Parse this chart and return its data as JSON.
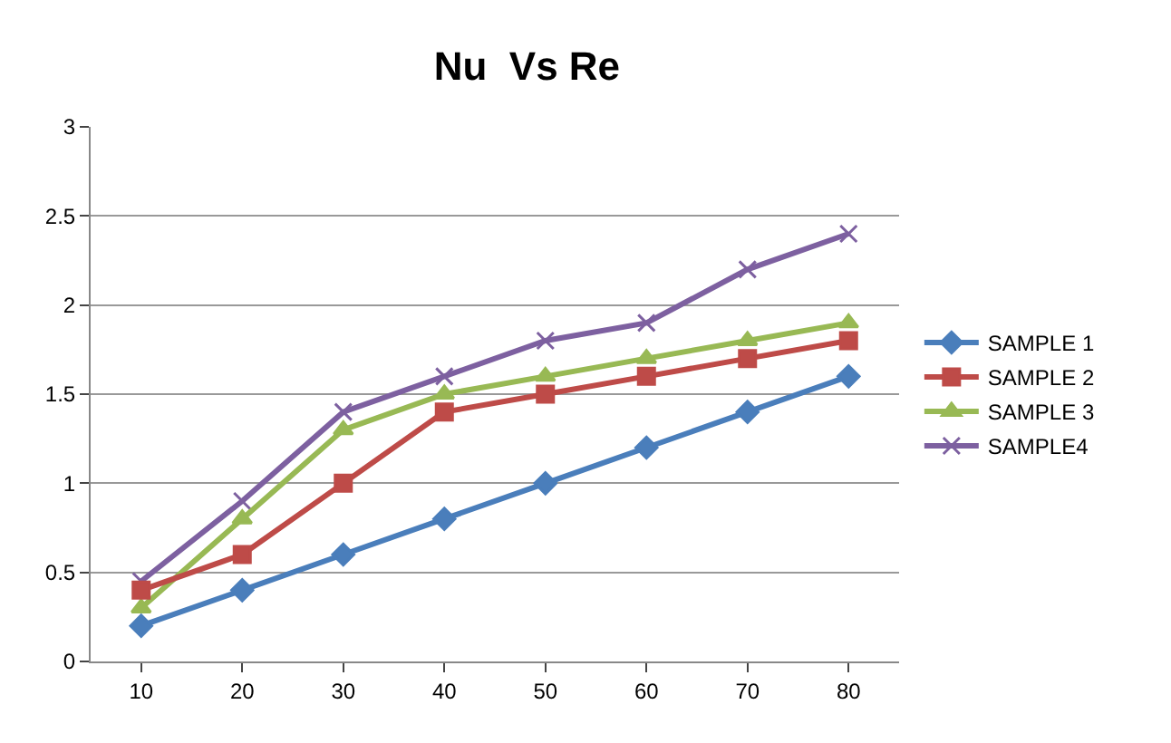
{
  "chart_data": {
    "type": "line",
    "title": "Nu  Vs Re",
    "categories": [
      "10",
      "20",
      "30",
      "40",
      "50",
      "60",
      "70",
      "80"
    ],
    "ylim": [
      0,
      3
    ],
    "yticks": [
      0,
      0.5,
      1,
      1.5,
      2,
      2.5,
      3
    ],
    "grid": "y",
    "legend": "right",
    "series": [
      {
        "name": "SAMPLE 1",
        "color": "#4a7ebb",
        "marker": "diamond",
        "values": [
          0.2,
          0.4,
          0.6,
          0.8,
          1.0,
          1.2,
          1.4,
          1.6
        ]
      },
      {
        "name": "SAMPLE 2",
        "color": "#be4b48",
        "marker": "square",
        "values": [
          0.4,
          0.6,
          1.0,
          1.4,
          1.5,
          1.6,
          1.7,
          1.8
        ]
      },
      {
        "name": "SAMPLE 3",
        "color": "#98b954",
        "marker": "triangle",
        "values": [
          0.3,
          0.8,
          1.3,
          1.5,
          1.6,
          1.7,
          1.8,
          1.9
        ]
      },
      {
        "name": "SAMPLE4",
        "color": "#7d60a0",
        "marker": "cross",
        "values": [
          0.45,
          0.9,
          1.4,
          1.6,
          1.8,
          1.9,
          2.2,
          2.4
        ]
      }
    ]
  }
}
